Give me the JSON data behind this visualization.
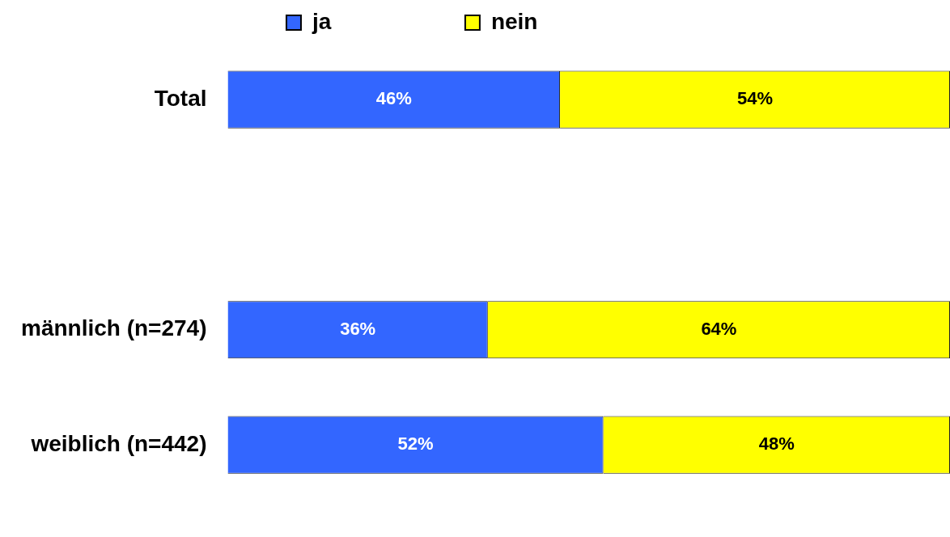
{
  "chart_data": {
    "type": "bar",
    "orientation": "horizontal",
    "stacked": true,
    "categories": [
      "Total",
      null,
      "männlich (n=274)",
      "weiblich (n=442)"
    ],
    "series": [
      {
        "name": "ja",
        "color": "#3366ff",
        "values": [
          46,
          null,
          36,
          52
        ],
        "value_labels": [
          "46%",
          null,
          "36%",
          "52%"
        ]
      },
      {
        "name": "nein",
        "color": "#ffff00",
        "values": [
          54,
          null,
          64,
          48
        ],
        "value_labels": [
          "54%",
          null,
          "64%",
          "48%"
        ]
      }
    ],
    "tick_labels": "y",
    "legend": "top"
  }
}
